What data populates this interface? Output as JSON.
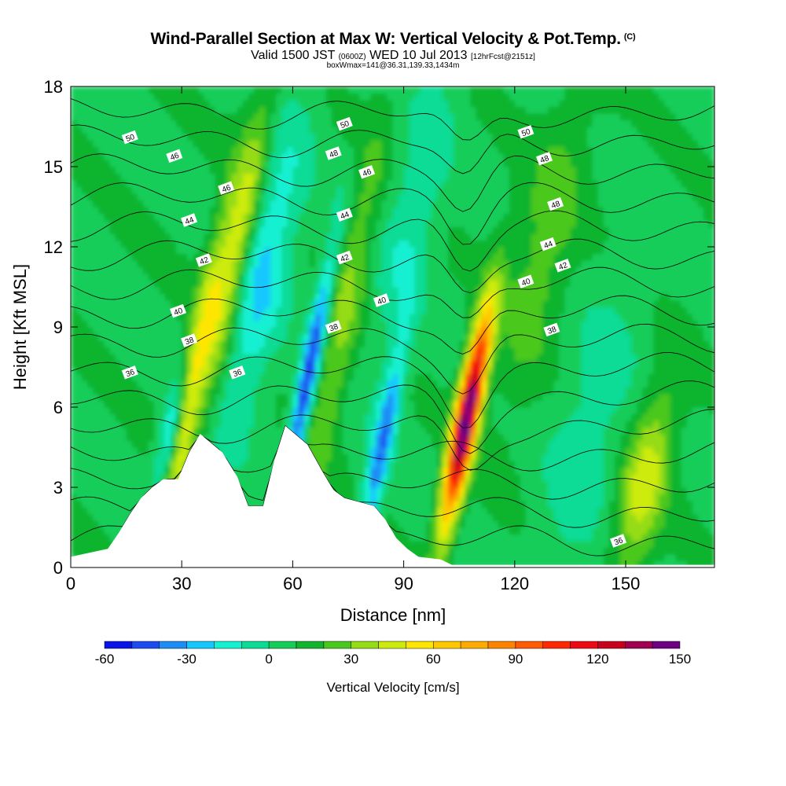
{
  "header": {
    "title": "Wind-Parallel Section at Max W: Vertical Velocity & Pot.Temp.",
    "title_mark": "(C)",
    "subtitle_a": "Valid 1500 JST",
    "subtitle_b": "(0600Z)",
    "subtitle_c": "WED 10 Jul 2013",
    "subtitle_d": "[12hrFcst@2151z]",
    "subtitle2": "boxWmax=141@36.31,139.33,1434m"
  },
  "chart_data": {
    "type": "heatmap",
    "xlabel": "Distance [nm]",
    "ylabel": "Height [Kft MSL]",
    "xlim": [
      0,
      174
    ],
    "ylim": [
      0,
      18
    ],
    "xticks": [
      0,
      30,
      60,
      90,
      120,
      150
    ],
    "yticks": [
      0,
      3,
      6,
      9,
      12,
      15,
      18
    ],
    "colorbar": {
      "label": "Vertical Velocity [cm/s]",
      "tick_labels": [
        "-60",
        "-30",
        "0",
        "30",
        "60",
        "90",
        "120",
        "150"
      ],
      "tick_values": [
        -60,
        -30,
        0,
        30,
        60,
        90,
        120,
        150
      ],
      "levels": [
        -60,
        -50,
        -40,
        -30,
        -20,
        -10,
        0,
        10,
        20,
        30,
        40,
        50,
        60,
        70,
        80,
        90,
        100,
        110,
        120,
        130,
        140,
        150
      ],
      "colors": [
        "#0a14e6",
        "#1e4bf0",
        "#1e8cf5",
        "#14c8ff",
        "#14f0d2",
        "#0adc96",
        "#14cd5a",
        "#10b42e",
        "#4bc81e",
        "#96dc14",
        "#cdeb0a",
        "#ffe600",
        "#ffc800",
        "#ffaa00",
        "#ff8200",
        "#ff5a00",
        "#ff2800",
        "#ee0a14",
        "#c8001e",
        "#a00050",
        "#6e0082"
      ]
    },
    "background_w": 8,
    "updrafts": [
      {
        "x": 107,
        "z": 5.6,
        "w": 145,
        "sx": 2.2,
        "sz": 2.8
      },
      {
        "x": 33,
        "z": 7,
        "w": 45,
        "sx": 2.5,
        "sz": 4.5
      },
      {
        "x": 45,
        "z": 12,
        "w": 40,
        "sx": 2.8,
        "sz": 4
      },
      {
        "x": 155,
        "z": 3.2,
        "w": 38,
        "sx": 4.5,
        "sz": 2.5
      },
      {
        "x": 73,
        "z": 9,
        "w": 25,
        "sx": 3.5,
        "sz": 5
      },
      {
        "x": 128,
        "z": 12,
        "w": 18,
        "sx": 6,
        "sz": 4
      }
    ],
    "downdrafts": [
      {
        "x": 64,
        "z": 7,
        "w": -60,
        "sx": 1.8,
        "sz": 3.5
      },
      {
        "x": 84,
        "z": 4.5,
        "w": -45,
        "sx": 2,
        "sz": 2.8
      },
      {
        "x": 27,
        "z": 5,
        "w": -40,
        "sx": 2,
        "sz": 1.5
      },
      {
        "x": 52,
        "z": 11,
        "w": -30,
        "sx": 5,
        "sz": 4
      },
      {
        "x": 92,
        "z": 13,
        "w": -18,
        "sx": 5,
        "sz": 4
      },
      {
        "x": 140,
        "z": 5,
        "w": -15,
        "sx": 7,
        "sz": 4
      }
    ],
    "terrain": [
      [
        0,
        0.4
      ],
      [
        10,
        0.7
      ],
      [
        13,
        1.3
      ],
      [
        16,
        2.0
      ],
      [
        19,
        2.6
      ],
      [
        22,
        3.0
      ],
      [
        25,
        3.3
      ],
      [
        29,
        3.3
      ],
      [
        32,
        4.3
      ],
      [
        35,
        5.0
      ],
      [
        41,
        4.3
      ],
      [
        45,
        3.4
      ],
      [
        48,
        2.3
      ],
      [
        52,
        2.3
      ],
      [
        55,
        4.0
      ],
      [
        58,
        5.3
      ],
      [
        64,
        4.6
      ],
      [
        68,
        3.6
      ],
      [
        71,
        2.9
      ],
      [
        74,
        2.6
      ],
      [
        82,
        2.3
      ],
      [
        85,
        1.8
      ],
      [
        88,
        1.1
      ],
      [
        91,
        0.7
      ],
      [
        94,
        0.4
      ],
      [
        100,
        0.3
      ],
      [
        103,
        0.1
      ],
      [
        174,
        0.1
      ]
    ],
    "theta_lines": {
      "levels": [
        36,
        37,
        38,
        39,
        40,
        41,
        42,
        43,
        44,
        45,
        46,
        47,
        48,
        49,
        50,
        51
      ],
      "labels": [
        {
          "text": "36",
          "x": 16,
          "z": 7.3
        },
        {
          "text": "38",
          "x": 32,
          "z": 8.5
        },
        {
          "text": "40",
          "x": 29,
          "z": 9.6
        },
        {
          "text": "42",
          "x": 36,
          "z": 11.5
        },
        {
          "text": "44",
          "x": 32,
          "z": 13.0
        },
        {
          "text": "46",
          "x": 28,
          "z": 15.4
        },
        {
          "text": "50",
          "x": 16,
          "z": 16.1
        },
        {
          "text": "46",
          "x": 42,
          "z": 14.2
        },
        {
          "text": "36",
          "x": 45,
          "z": 7.3
        },
        {
          "text": "38",
          "x": 71,
          "z": 9.0
        },
        {
          "text": "40",
          "x": 84,
          "z": 10.0
        },
        {
          "text": "42",
          "x": 74,
          "z": 11.6
        },
        {
          "text": "44",
          "x": 74,
          "z": 13.2
        },
        {
          "text": "46",
          "x": 80,
          "z": 14.8
        },
        {
          "text": "48",
          "x": 71,
          "z": 15.5
        },
        {
          "text": "50",
          "x": 74,
          "z": 16.6
        },
        {
          "text": "50",
          "x": 123,
          "z": 16.3
        },
        {
          "text": "48",
          "x": 128,
          "z": 15.3
        },
        {
          "text": "48",
          "x": 131,
          "z": 13.6
        },
        {
          "text": "44",
          "x": 129,
          "z": 12.1
        },
        {
          "text": "42",
          "x": 133,
          "z": 11.3
        },
        {
          "text": "40",
          "x": 123,
          "z": 10.7
        },
        {
          "text": "38",
          "x": 130,
          "z": 8.9
        },
        {
          "text": "36",
          "x": 148,
          "z": 1.0
        }
      ]
    }
  }
}
